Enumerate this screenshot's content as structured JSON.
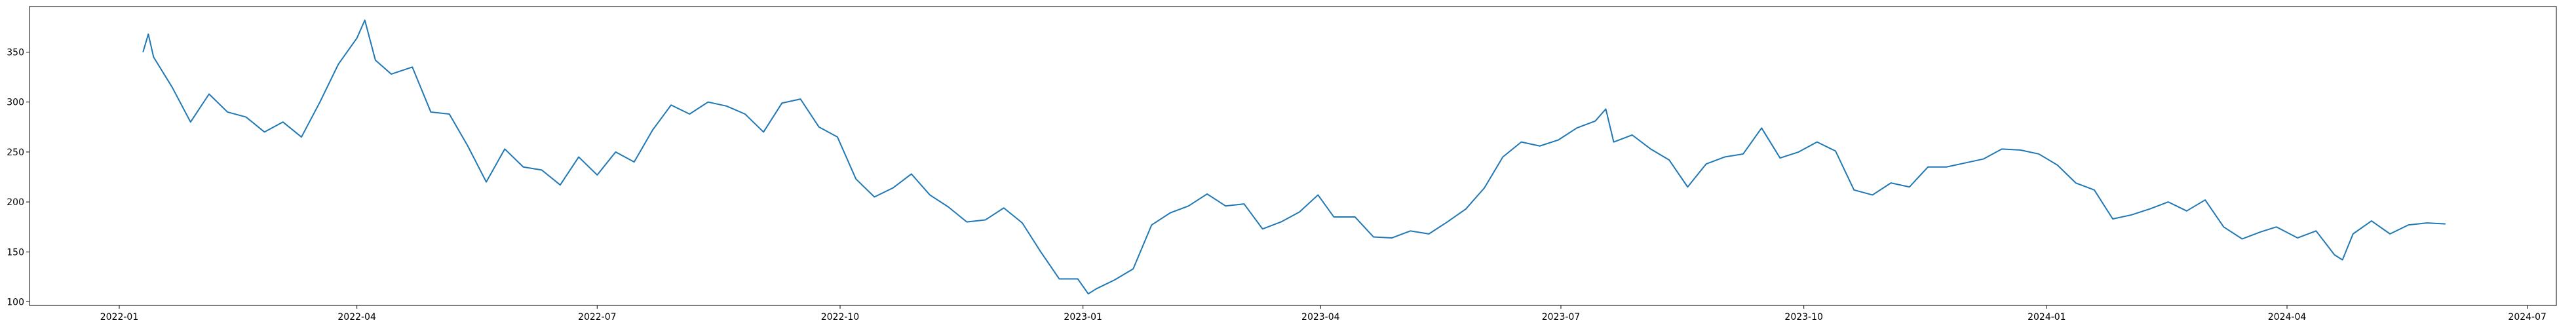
{
  "chart_data": {
    "type": "line",
    "x": [
      "2022-01-10",
      "2022-01-12",
      "2022-01-14",
      "2022-01-21",
      "2022-01-28",
      "2022-02-04",
      "2022-02-11",
      "2022-02-18",
      "2022-02-25",
      "2022-03-04",
      "2022-03-11",
      "2022-03-18",
      "2022-03-25",
      "2022-04-01",
      "2022-04-04",
      "2022-04-08",
      "2022-04-14",
      "2022-04-22",
      "2022-04-29",
      "2022-05-06",
      "2022-05-13",
      "2022-05-20",
      "2022-05-27",
      "2022-06-03",
      "2022-06-10",
      "2022-06-17",
      "2022-06-24",
      "2022-07-01",
      "2022-07-08",
      "2022-07-15",
      "2022-07-22",
      "2022-07-29",
      "2022-08-05",
      "2022-08-12",
      "2022-08-19",
      "2022-08-26",
      "2022-09-02",
      "2022-09-09",
      "2022-09-16",
      "2022-09-23",
      "2022-09-30",
      "2022-10-07",
      "2022-10-14",
      "2022-10-21",
      "2022-10-28",
      "2022-11-04",
      "2022-11-11",
      "2022-11-18",
      "2022-11-25",
      "2022-12-02",
      "2022-12-09",
      "2022-12-16",
      "2022-12-23",
      "2022-12-30",
      "2023-01-03",
      "2023-01-06",
      "2023-01-13",
      "2023-01-20",
      "2023-01-27",
      "2023-02-03",
      "2023-02-10",
      "2023-02-17",
      "2023-02-24",
      "2023-03-03",
      "2023-03-10",
      "2023-03-17",
      "2023-03-24",
      "2023-03-31",
      "2023-04-06",
      "2023-04-14",
      "2023-04-21",
      "2023-04-28",
      "2023-05-05",
      "2023-05-12",
      "2023-05-19",
      "2023-05-26",
      "2023-06-02",
      "2023-06-09",
      "2023-06-16",
      "2023-06-23",
      "2023-06-30",
      "2023-07-07",
      "2023-07-14",
      "2023-07-18",
      "2023-07-21",
      "2023-07-28",
      "2023-08-04",
      "2023-08-11",
      "2023-08-18",
      "2023-08-25",
      "2023-09-01",
      "2023-09-08",
      "2023-09-15",
      "2023-09-22",
      "2023-09-29",
      "2023-10-06",
      "2023-10-13",
      "2023-10-20",
      "2023-10-27",
      "2023-11-03",
      "2023-11-10",
      "2023-11-17",
      "2023-11-24",
      "2023-12-01",
      "2023-12-08",
      "2023-12-15",
      "2023-12-22",
      "2023-12-29",
      "2024-01-05",
      "2024-01-12",
      "2024-01-19",
      "2024-01-26",
      "2024-02-02",
      "2024-02-09",
      "2024-02-16",
      "2024-02-23",
      "2024-03-01",
      "2024-03-08",
      "2024-03-15",
      "2024-03-22",
      "2024-03-28",
      "2024-04-05",
      "2024-04-12",
      "2024-04-19",
      "2024-04-22",
      "2024-04-26",
      "2024-05-03",
      "2024-05-10",
      "2024-05-17",
      "2024-05-24",
      "2024-05-31"
    ],
    "series": [
      {
        "color": "#1f77b4",
        "values": [
          350,
          368,
          345,
          315,
          280,
          308,
          290,
          285,
          270,
          280,
          265,
          300,
          338,
          364,
          382,
          342,
          328,
          335,
          290,
          288,
          256,
          220,
          253,
          235,
          232,
          217,
          245,
          227,
          250,
          240,
          272,
          297,
          288,
          300,
          296,
          288,
          270,
          299,
          303,
          275,
          265,
          223,
          205,
          214,
          228,
          207,
          195,
          180,
          182,
          194,
          179,
          150,
          123,
          123,
          108,
          113,
          122,
          133,
          177,
          189,
          196,
          208,
          196,
          198,
          173,
          180,
          190,
          207,
          185,
          185,
          165,
          164,
          171,
          168,
          180,
          193,
          214,
          245,
          260,
          256,
          262,
          274,
          281,
          293,
          260,
          267,
          253,
          242,
          215,
          238,
          245,
          248,
          274,
          244,
          250,
          260,
          251,
          212,
          207,
          219,
          215,
          235,
          235,
          239,
          243,
          253,
          252,
          248,
          237,
          219,
          212,
          183,
          187,
          193,
          200,
          191,
          202,
          175,
          163,
          170,
          175,
          164,
          171,
          147,
          142,
          168,
          181,
          168,
          177,
          179,
          178
        ]
      }
    ],
    "xlim": [
      "2021-11-28",
      "2024-07-12"
    ],
    "xticks": [
      "2022-01",
      "2022-04",
      "2022-07",
      "2022-10",
      "2023-01",
      "2023-04",
      "2023-07",
      "2023-10",
      "2024-01",
      "2024-04",
      "2024-07"
    ],
    "ylim": [
      96.4,
      395.6
    ],
    "yticks": [
      100,
      150,
      200,
      250,
      300,
      350
    ]
  }
}
